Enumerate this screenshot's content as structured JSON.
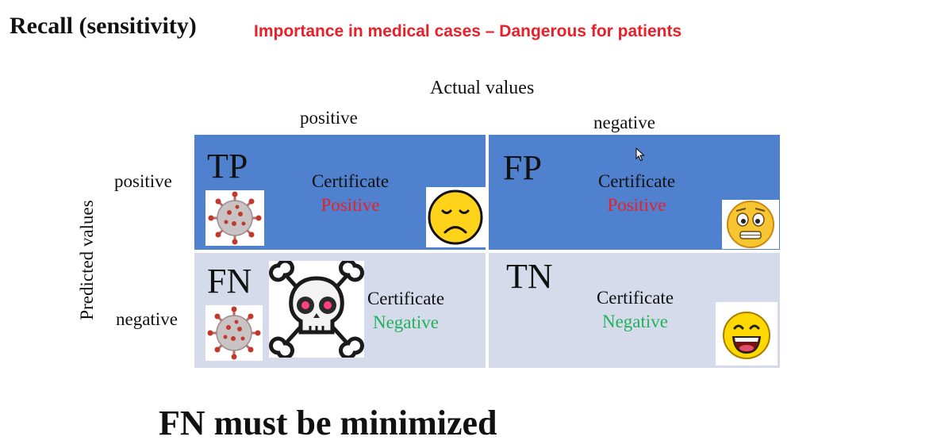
{
  "header": {
    "title": "Recall (sensitivity)",
    "subtitle": "Importance in medical cases – Dangerous for patients"
  },
  "matrix": {
    "actual_label": "Actual values",
    "predicted_label": "Predicted values",
    "col_positive": "positive",
    "col_negative": "negative",
    "row_positive": "positive",
    "row_negative": "negative",
    "cells": {
      "tp": {
        "code": "TP",
        "certificate": "Certificate",
        "value": "Positive"
      },
      "fp": {
        "code": "FP",
        "certificate": "Certificate",
        "value": "Positive"
      },
      "fn": {
        "code": "FN",
        "certificate": "Certificate",
        "value": "Negative"
      },
      "tn": {
        "code": "TN",
        "certificate": "Certificate",
        "value": "Negative"
      }
    }
  },
  "colors": {
    "positive_cell": "#4f81cf",
    "negative_cell": "#d6dbeb",
    "positive_text": "#e8202a",
    "negative_text": "#22b25a",
    "subtitle": "#e8202a"
  },
  "icons": [
    "virus-icon",
    "sad-face-icon",
    "worried-face-icon",
    "skull-crossbones-icon",
    "laughing-face-icon",
    "mouse-cursor-icon"
  ],
  "footer": {
    "text": "FN must be minimized"
  }
}
